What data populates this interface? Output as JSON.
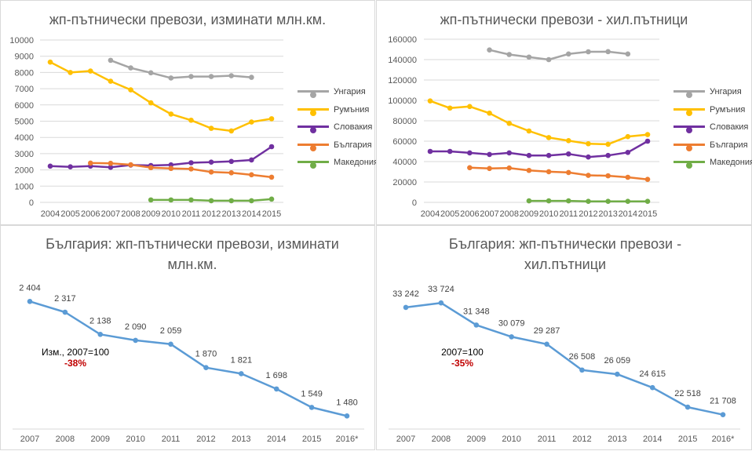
{
  "chart_data": [
    {
      "type": "line",
      "title": "жп-пътнически превози, изминати млн.км.",
      "categories": [
        "2004",
        "2005",
        "2006",
        "2007",
        "2008",
        "2009",
        "2010",
        "2011",
        "2012",
        "2013",
        "2014",
        "2015"
      ],
      "ylim": [
        0,
        10000
      ],
      "yticks": [
        "10000",
        "9000",
        "8000",
        "7000",
        "6000",
        "5000",
        "4000",
        "3000",
        "2000",
        "1000",
        "0"
      ],
      "grid": true,
      "legend_position": "right",
      "series": [
        {
          "name": "Унгария",
          "color": "#a5a5a5",
          "values": [
            null,
            null,
            null,
            8750,
            8280,
            7980,
            7660,
            7750,
            7750,
            7800,
            7700,
            null
          ]
        },
        {
          "name": "Румъния",
          "color": "#ffc000",
          "values": [
            8640,
            8000,
            8090,
            7460,
            6930,
            6130,
            5440,
            5060,
            4560,
            4400,
            4950,
            5150
          ]
        },
        {
          "name": "Словакия",
          "color": "#7030a0",
          "values": [
            2230,
            2190,
            2230,
            2160,
            2300,
            2270,
            2310,
            2440,
            2480,
            2520,
            2610,
            3430
          ]
        },
        {
          "name": "България",
          "color": "#ed7d31",
          "values": [
            null,
            null,
            2420,
            2404,
            2317,
            2138,
            2090,
            2059,
            1870,
            1821,
            1698,
            1549
          ]
        },
        {
          "name": "Македония",
          "color": "#70ad47",
          "values": [
            null,
            null,
            null,
            null,
            null,
            150,
            150,
            150,
            100,
            100,
            100,
            200
          ]
        }
      ]
    },
    {
      "type": "line",
      "title": "жп-пътнически превози - хил.пътници",
      "categories": [
        "2004",
        "2005",
        "2006",
        "2007",
        "2008",
        "2009",
        "2010",
        "2011",
        "2012",
        "2013",
        "2014",
        "2015"
      ],
      "ylim": [
        0,
        160000
      ],
      "yticks": [
        "160000",
        "140000",
        "120000",
        "100000",
        "80000",
        "60000",
        "40000",
        "20000",
        "0"
      ],
      "grid": true,
      "legend_position": "right",
      "series": [
        {
          "name": "Унгария",
          "color": "#a5a5a5",
          "values": [
            null,
            null,
            null,
            149500,
            145000,
            142500,
            140000,
            145500,
            147700,
            147800,
            145500,
            null
          ]
        },
        {
          "name": "Румъния",
          "color": "#ffc000",
          "values": [
            99500,
            92500,
            94000,
            87500,
            77500,
            70000,
            63500,
            60500,
            57500,
            57000,
            64500,
            66500
          ]
        },
        {
          "name": "Словакия",
          "color": "#7030a0",
          "values": [
            50000,
            50000,
            48500,
            47000,
            48500,
            46000,
            46000,
            47500,
            44500,
            46000,
            49000,
            60000
          ]
        },
        {
          "name": "България",
          "color": "#ed7d31",
          "values": [
            null,
            null,
            34000,
            33242,
            33724,
            31348,
            30079,
            29287,
            26508,
            26059,
            24615,
            22518
          ]
        },
        {
          "name": "Македония",
          "color": "#70ad47",
          "values": [
            null,
            null,
            null,
            null,
            null,
            1500,
            1500,
            1500,
            1000,
            1000,
            1000,
            1000
          ]
        }
      ]
    },
    {
      "type": "line",
      "title": "България: жп-пътнически превози, изминати млн.км.",
      "categories": [
        "2007",
        "2008",
        "2009",
        "2010",
        "2011",
        "2012",
        "2013",
        "2014",
        "2015",
        "2016*"
      ],
      "values": [
        2404,
        2317,
        2138,
        2090,
        2059,
        1870,
        1821,
        1698,
        1549,
        1480
      ],
      "labels": [
        "2 404",
        "2 317",
        "2 138",
        "2 090",
        "2 059",
        "1 870",
        "1 821",
        "1 698",
        "1 549",
        "1 480"
      ],
      "ylim": [
        1400,
        2450
      ],
      "color": "#5b9bd5",
      "annotation": {
        "main": "Изм., 2007=100",
        "sub": "-38%"
      }
    },
    {
      "type": "line",
      "title": "България: жп-пътнически превози - хил.пътници",
      "categories": [
        "2007",
        "2008",
        "2009",
        "2010",
        "2011",
        "2012",
        "2013",
        "2014",
        "2015",
        "2016*"
      ],
      "values": [
        33242,
        33724,
        31348,
        30079,
        29287,
        26508,
        26059,
        24615,
        22518,
        21708
      ],
      "labels": [
        "33 242",
        "33 724",
        "31 348",
        "30 079",
        "29 287",
        "26 508",
        "26 059",
        "24 615",
        "22 518",
        "21 708"
      ],
      "ylim": [
        20500,
        34500
      ],
      "color": "#5b9bd5",
      "annotation": {
        "main": "2007=100",
        "sub": "-35%"
      }
    }
  ]
}
